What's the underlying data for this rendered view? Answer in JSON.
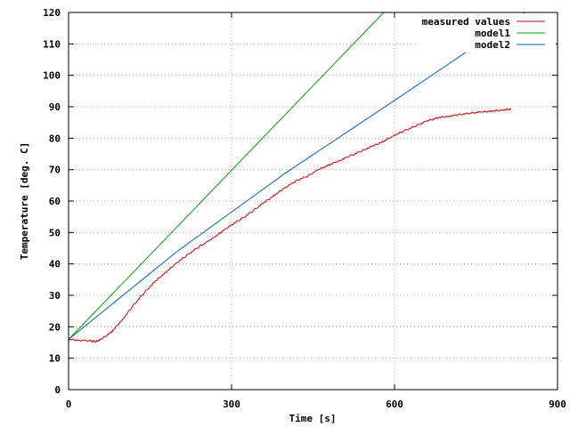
{
  "chart_data": {
    "type": "line",
    "xlabel": "Time [s]",
    "ylabel": "Temperature [deg. C]",
    "xlim": [
      0,
      900
    ],
    "ylim": [
      0,
      120
    ],
    "xticks": [
      0,
      300,
      600,
      900
    ],
    "yticks": [
      0,
      10,
      20,
      30,
      40,
      50,
      60,
      70,
      80,
      90,
      100,
      110,
      120
    ],
    "grid": true,
    "legend_position": "top-right",
    "series": [
      {
        "name": "measured values",
        "color": "#cc0000",
        "x": [
          0,
          20,
          40,
          50,
          60,
          80,
          100,
          120,
          140,
          160,
          180,
          200,
          220,
          240,
          260,
          280,
          300,
          320,
          340,
          360,
          380,
          400,
          420,
          440,
          460,
          480,
          500,
          520,
          540,
          560,
          580,
          600,
          620,
          640,
          660,
          680,
          700,
          720,
          740,
          760,
          780,
          800,
          815
        ],
        "y": [
          16,
          15.7,
          15.5,
          15.3,
          16,
          18.5,
          22.5,
          27,
          31,
          34.5,
          37.5,
          40.5,
          43,
          45.5,
          47.5,
          50,
          52.5,
          54.5,
          57,
          59.5,
          62,
          64.5,
          66.5,
          68,
          70,
          71.5,
          73,
          74.5,
          76,
          77.5,
          79,
          81,
          82.5,
          84,
          85.5,
          86.5,
          87,
          87.5,
          88,
          88.3,
          88.6,
          89,
          89.3
        ]
      },
      {
        "name": "model1",
        "color": "#00a000",
        "x": [
          0,
          580
        ],
        "y": [
          16,
          120
        ]
      },
      {
        "name": "model2",
        "color": "#0060c0",
        "x": [
          0,
          200,
          400,
          600,
          840
        ],
        "y": [
          16,
          44,
          69,
          92,
          120
        ]
      }
    ]
  }
}
